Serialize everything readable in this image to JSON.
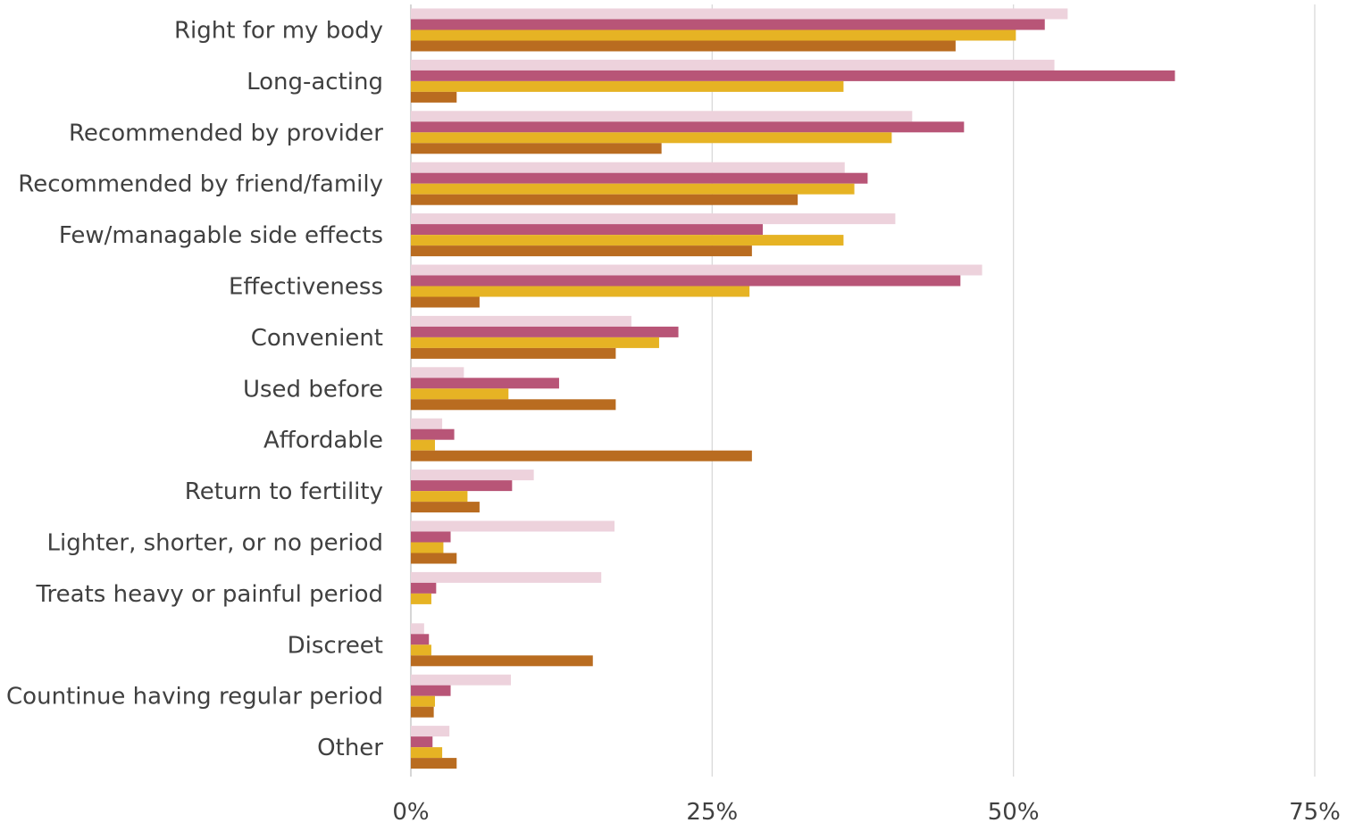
{
  "chart_data": {
    "type": "bar",
    "orientation": "horizontal",
    "title": "",
    "xlabel": "",
    "ylabel": "",
    "xlim": [
      0,
      75
    ],
    "x_ticks": [
      0,
      25,
      50,
      75
    ],
    "x_tick_labels": [
      "0%",
      "25%",
      "50%",
      "75%"
    ],
    "grid": true,
    "legend": "none",
    "categories": [
      "Right for my body",
      "Long-acting",
      "Recommended by provider",
      "Recommended by friend/family",
      "Few/managable side effects",
      "Effectiveness",
      "Convenient",
      "Used before",
      "Affordable",
      "Return to fertility",
      "Lighter, shorter, or no period",
      "Treats heavy or painful period",
      "Discreet",
      "Countinue having regular period",
      "Other"
    ],
    "series": [
      {
        "color": "#edd2dc",
        "values": [
          54.5,
          53.4,
          41.6,
          36.0,
          40.2,
          47.4,
          18.3,
          4.4,
          2.6,
          10.2,
          16.9,
          15.8,
          1.1,
          8.3,
          3.2
        ]
      },
      {
        "color": "#b85577",
        "values": [
          52.6,
          63.4,
          45.9,
          37.9,
          29.2,
          45.6,
          22.2,
          12.3,
          3.6,
          8.4,
          3.3,
          2.1,
          1.5,
          3.3,
          1.8
        ]
      },
      {
        "color": "#e6b324",
        "values": [
          50.2,
          35.9,
          39.9,
          36.8,
          35.9,
          28.1,
          20.6,
          8.1,
          2.0,
          4.7,
          2.7,
          1.7,
          1.7,
          2.0,
          2.6
        ]
      },
      {
        "color": "#b96c20",
        "values": [
          45.2,
          3.8,
          20.8,
          32.1,
          28.3,
          5.7,
          17.0,
          17.0,
          28.3,
          5.7,
          3.8,
          0,
          15.1,
          1.9,
          3.8
        ]
      }
    ]
  }
}
